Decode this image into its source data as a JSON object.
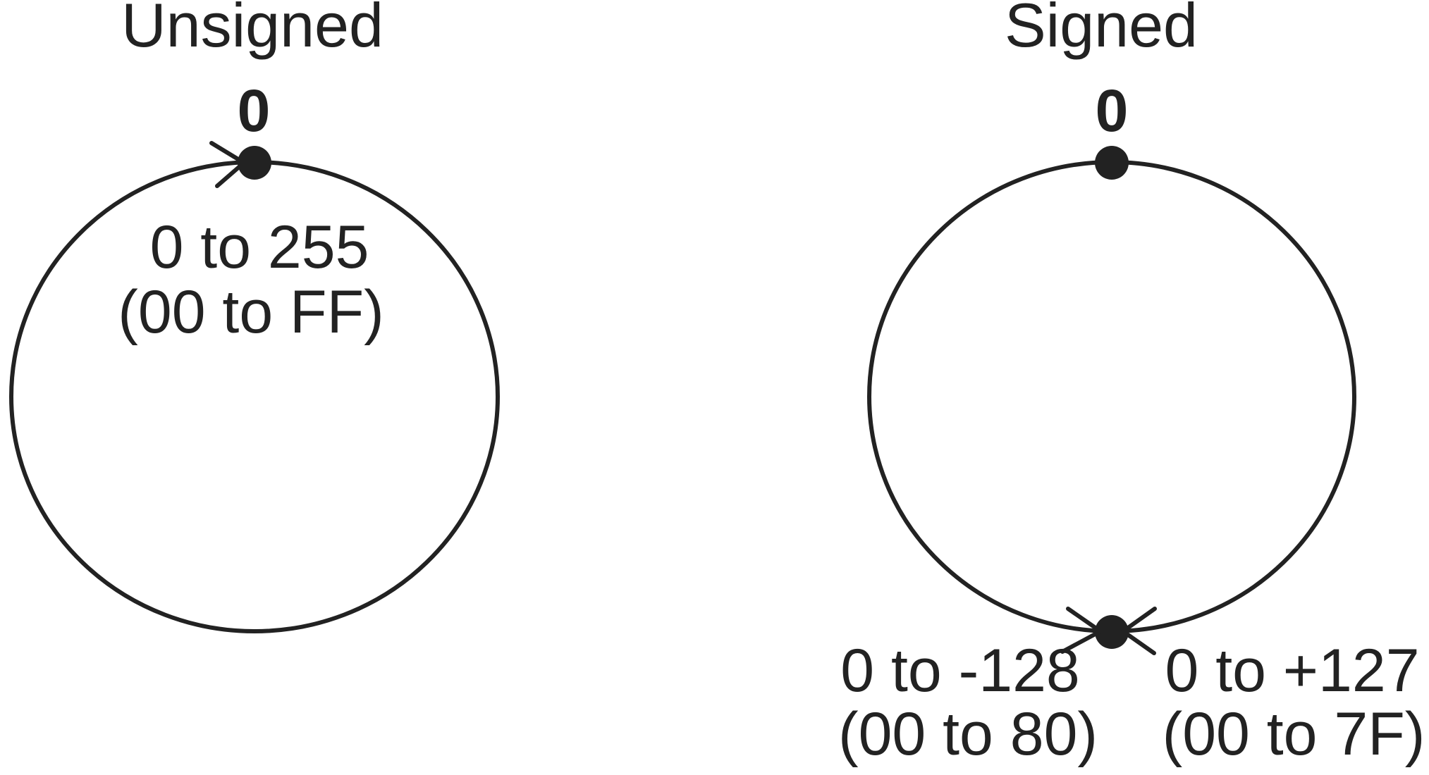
{
  "colors": {
    "ink": "#222222",
    "background": "#ffffff"
  },
  "unsigned": {
    "title": "Unsigned",
    "zero_label": "0",
    "range_line1": "0 to 255",
    "range_line2": "(00 to FF)"
  },
  "signed": {
    "title": "Signed",
    "zero_label": "0",
    "negative_range_line1": "0 to -128",
    "negative_range_line2": "(00 to 80)",
    "positive_range_line1": "0 to +127",
    "positive_range_line2": "(00 to 7F)"
  }
}
